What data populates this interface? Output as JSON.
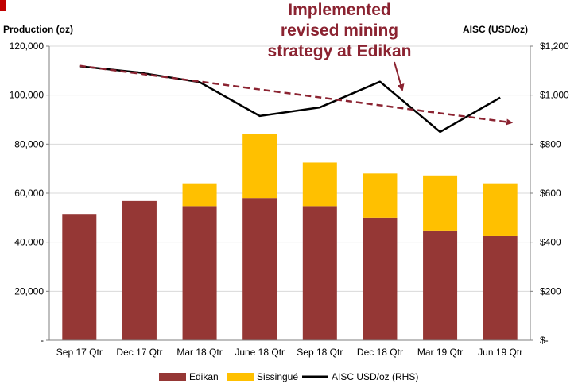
{
  "colors": {
    "edikan": "#953735",
    "sissingue": "#ffc000",
    "aisc": "#000000",
    "trend": "#8b2331",
    "corner": "#c00000",
    "grid": "#d9d9d9"
  },
  "chart_data": {
    "type": "bar",
    "stacked": true,
    "categories": [
      "Sep 17 Qtr",
      "Dec 17 Qtr",
      "Mar 18 Qtr",
      "June 18 Qtr",
      "Sep 18 Qtr",
      "Dec 18 Qtr",
      "Mar 19 Qtr",
      "Jun 19 Qtr"
    ],
    "series": [
      {
        "name": "Edikan",
        "values": [
          51500,
          56800,
          54700,
          58000,
          54700,
          50000,
          44800,
          42500
        ]
      },
      {
        "name": "Sissingué",
        "values": [
          0,
          0,
          9300,
          26000,
          17800,
          18000,
          22400,
          21500
        ]
      }
    ],
    "line_series": [
      {
        "name": "AISC USD/oz (RHS)",
        "axis": "right",
        "values": [
          1118,
          1092,
          1053,
          915,
          950,
          1055,
          850,
          990
        ]
      }
    ],
    "trend_line": {
      "axis": "right",
      "start": 1120,
      "end": 888
    },
    "ylabel_left": "Production (oz)",
    "ylabel_right": "AISC (USD/oz)",
    "ylim_left": [
      0,
      120000
    ],
    "ylim_right": [
      0,
      1200
    ],
    "yticks_left": [
      "-",
      "20,000",
      "40,000",
      "60,000",
      "80,000",
      "100,000",
      "120,000"
    ],
    "yticks_right": [
      "$-",
      "$200",
      "$400",
      "$600",
      "$800",
      "$1,000",
      "$1,200"
    ],
    "grid": true,
    "legend_position": "bottom",
    "annotation": [
      "Implemented",
      "revised mining",
      "strategy at Edikan"
    ]
  }
}
